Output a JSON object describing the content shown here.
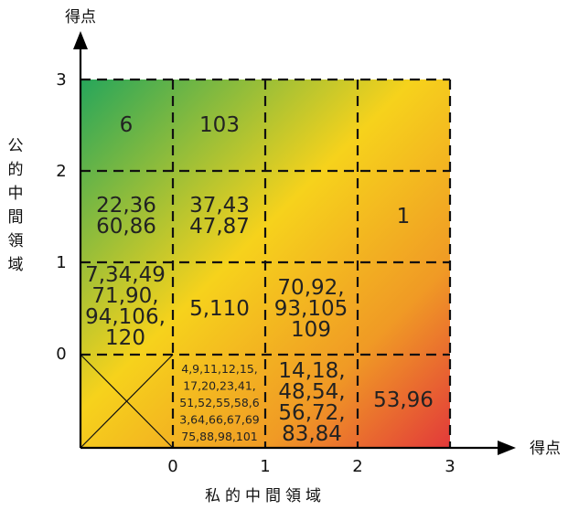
{
  "axes": {
    "y_arrow_label": "得点",
    "x_arrow_label": "得点",
    "y_title": [
      "公",
      "的",
      "中",
      "間",
      "領",
      "域"
    ],
    "x_title": "私的中間領域",
    "y_ticks": [
      "3",
      "2",
      "1",
      "0"
    ],
    "x_ticks": [
      "0",
      "1",
      "2",
      "3"
    ]
  },
  "colors": {
    "green": "#26A65B",
    "yellow": "#F6D21C",
    "orange": "#F09A25",
    "red": "#E2393A",
    "grid": "#111111"
  },
  "cells": [
    {
      "id": "r3c0",
      "lines": [
        "6"
      ]
    },
    {
      "id": "r3c1",
      "lines": [
        "103"
      ]
    },
    {
      "id": "r2c0",
      "lines": [
        "22,36",
        "60,86"
      ]
    },
    {
      "id": "r2c1",
      "lines": [
        "37,43",
        "47,87"
      ]
    },
    {
      "id": "r2c3",
      "lines": [
        "1"
      ]
    },
    {
      "id": "r1c0",
      "lines": [
        "7,34,49",
        "71,90,",
        "94,106,",
        "120"
      ]
    },
    {
      "id": "r1c1",
      "lines": [
        "5,110"
      ]
    },
    {
      "id": "r1c2",
      "lines": [
        "70,92,",
        "93,105",
        "109"
      ]
    },
    {
      "id": "r0c1",
      "lines": [
        "4,9,11,12,15,",
        "17,20,23,41,",
        "51,52,55,58,6",
        "3,64,66,67,69",
        "75,88,98,101"
      ]
    },
    {
      "id": "r0c2",
      "lines": [
        "14,18,",
        "48,54,",
        "56,72,",
        "83,84"
      ]
    },
    {
      "id": "r0c3",
      "lines": [
        "53,96"
      ]
    }
  ]
}
